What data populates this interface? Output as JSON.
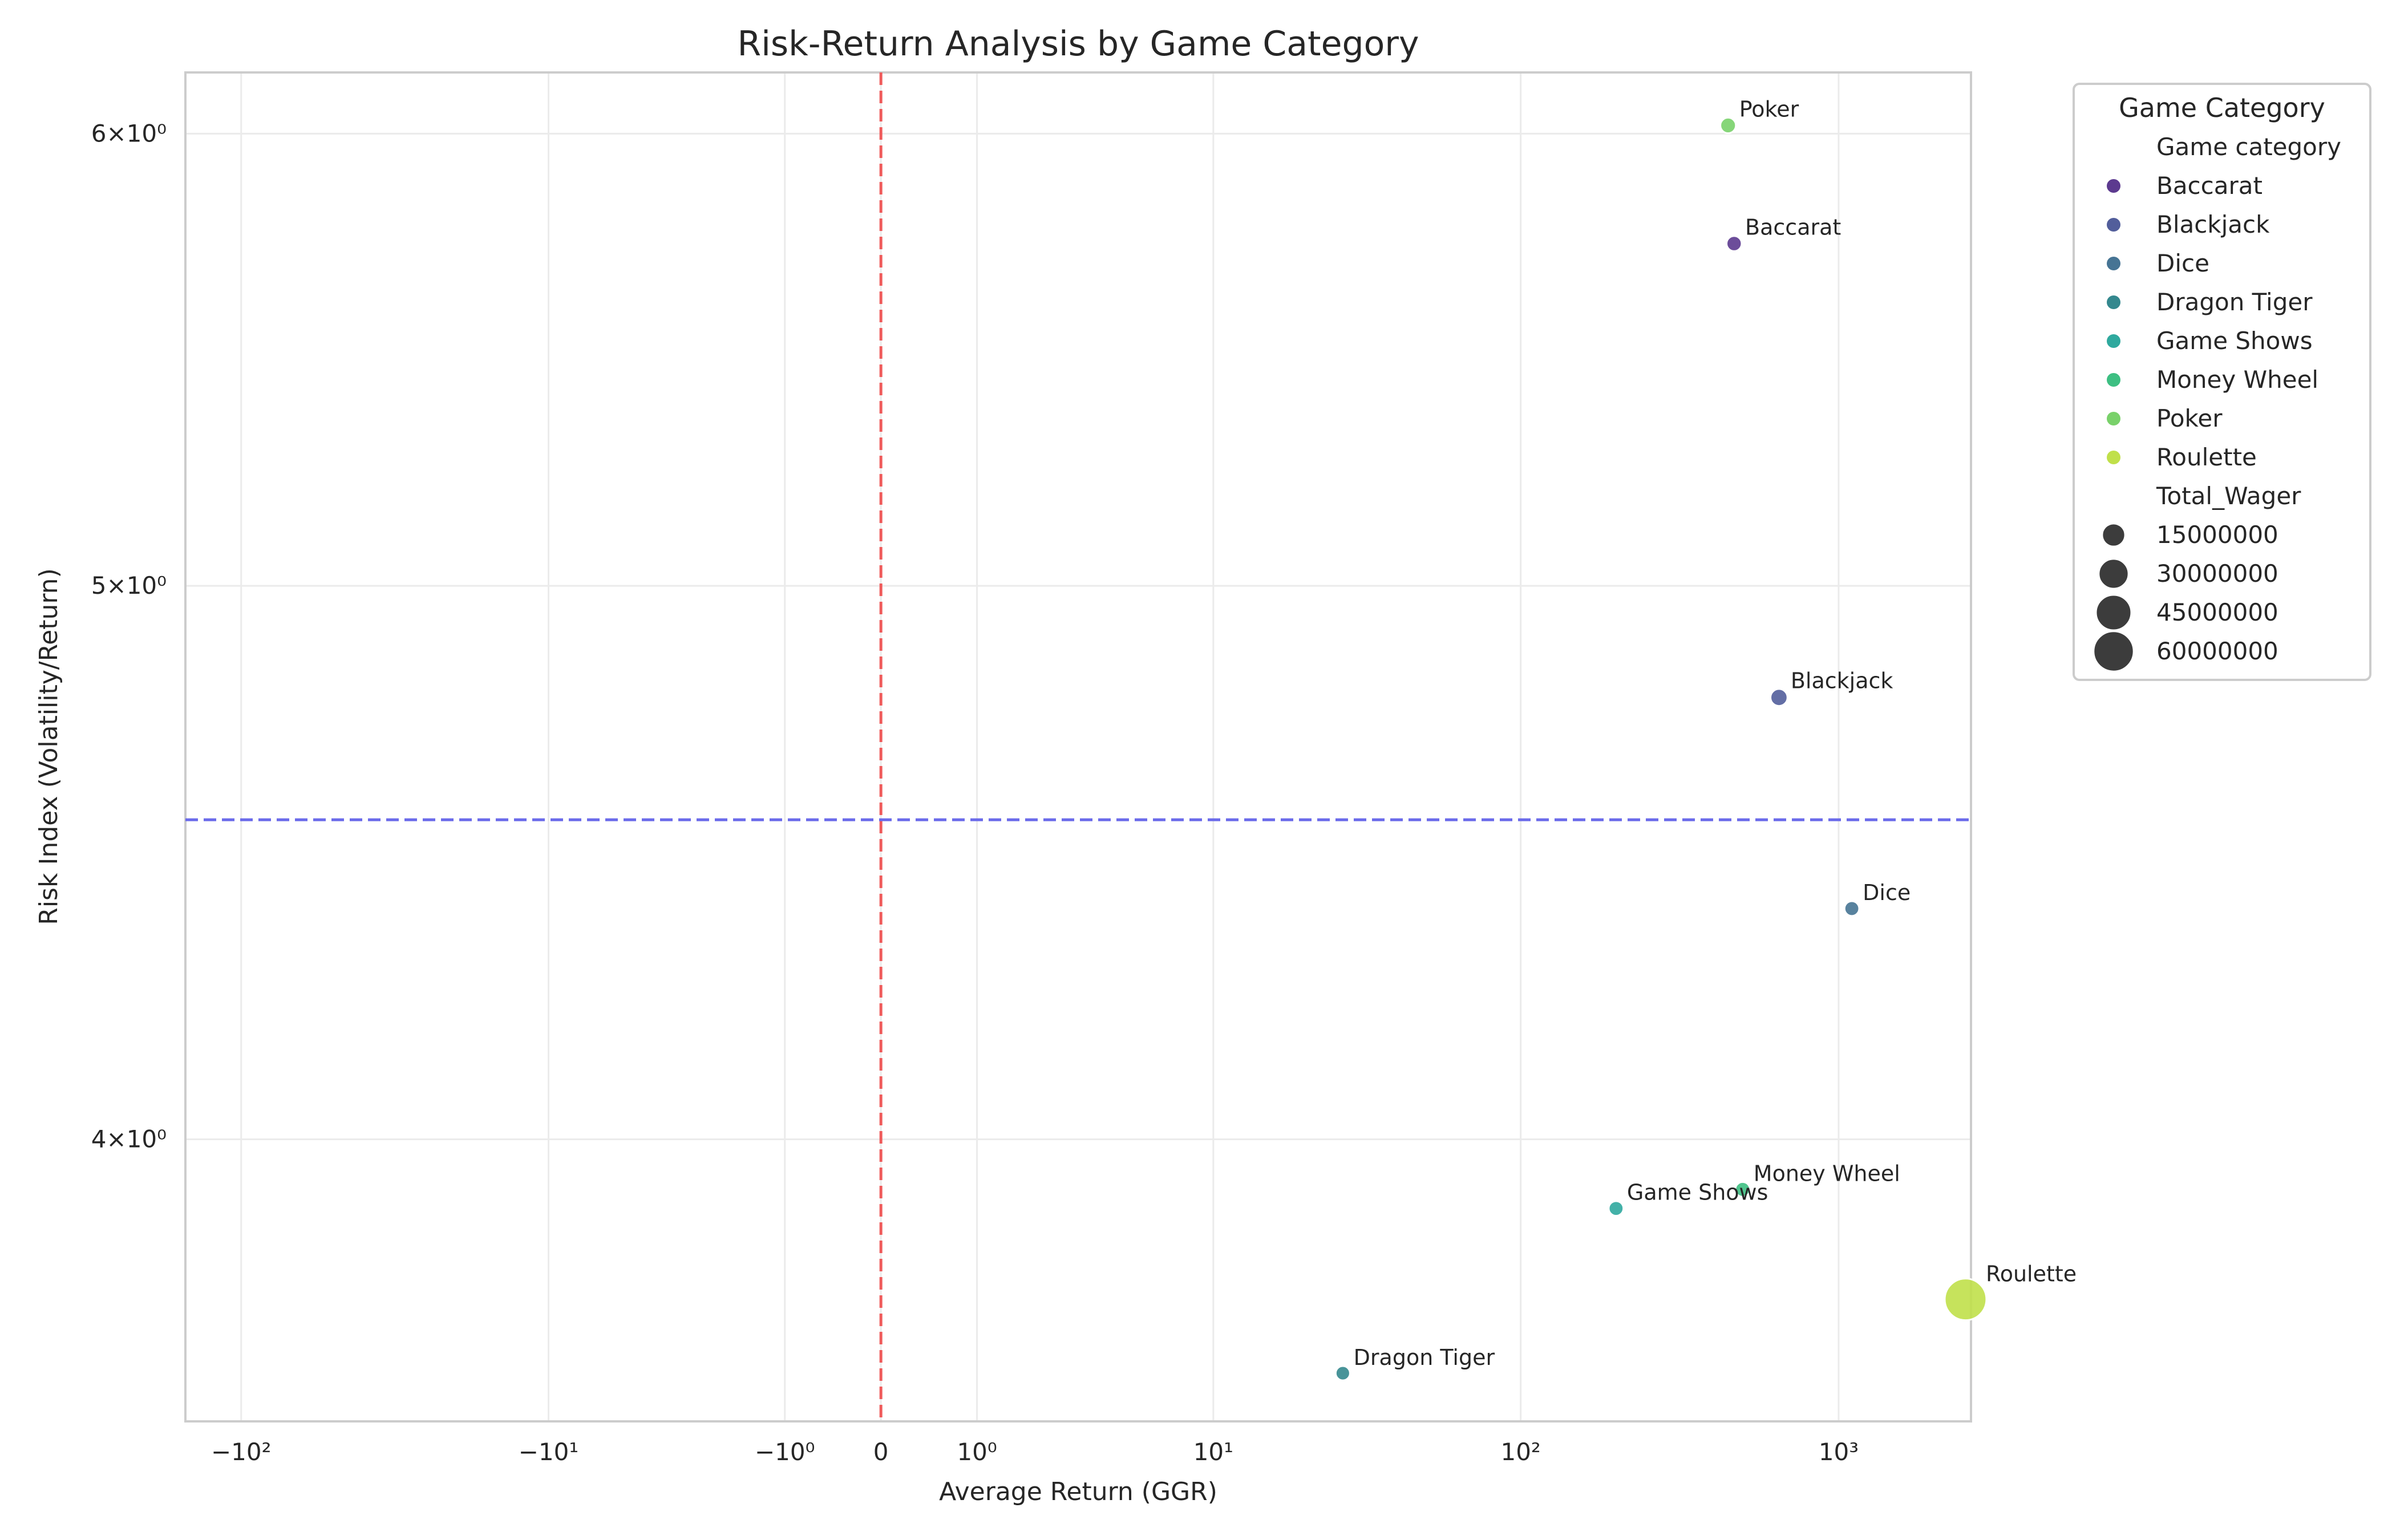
{
  "chart_data": {
    "type": "scatter",
    "title": "Risk-Return Analysis by Game Category",
    "xlabel": "Average Return (GGR)",
    "ylabel": "Risk Index (Volatility/Return)",
    "x_scale": "symlog",
    "y_scale": "log",
    "xlim": [
      -150,
      2600
    ],
    "ylim": [
      3.57,
      6.15
    ],
    "grid": true,
    "x_ticks": [
      {
        "value": -100,
        "label": "−10²"
      },
      {
        "value": -10,
        "label": "−10¹"
      },
      {
        "value": -1,
        "label": "−10⁰"
      },
      {
        "value": 0,
        "label": "0"
      },
      {
        "value": 1,
        "label": "10⁰"
      },
      {
        "value": 10,
        "label": "10¹"
      },
      {
        "value": 100,
        "label": "10²"
      },
      {
        "value": 1000,
        "label": "10³"
      }
    ],
    "y_ticks": [
      {
        "value": 4,
        "label": "4×10⁰"
      },
      {
        "value": 5,
        "label": "5×10⁰"
      },
      {
        "value": 6,
        "label": "6×10⁰"
      }
    ],
    "reference_lines": [
      {
        "axis": "x",
        "value": 0,
        "color": "#ef5b5b",
        "style": "dashed"
      },
      {
        "axis": "y",
        "value": 4.55,
        "color": "#6b6bea",
        "style": "dashed"
      }
    ],
    "points": [
      {
        "category": "Baccarat",
        "x": 470,
        "y": 5.74,
        "total_wager": 2500000,
        "color": "#5c3a8f"
      },
      {
        "category": "Blackjack",
        "x": 650,
        "y": 4.78,
        "total_wager": 5000000,
        "color": "#525e9b"
      },
      {
        "category": "Dice",
        "x": 1100,
        "y": 4.39,
        "total_wager": 2000000,
        "color": "#467494"
      },
      {
        "category": "Dragon Tiger",
        "x": 27,
        "y": 3.64,
        "total_wager": 1500000,
        "color": "#34888e"
      },
      {
        "category": "Game Shows",
        "x": 200,
        "y": 3.89,
        "total_wager": 2000000,
        "color": "#2fa99e"
      },
      {
        "category": "Money Wheel",
        "x": 500,
        "y": 3.92,
        "total_wager": 2000000,
        "color": "#3dbf82"
      },
      {
        "category": "Poker",
        "x": 450,
        "y": 6.02,
        "total_wager": 3000000,
        "color": "#79d16a"
      },
      {
        "category": "Roulette",
        "x": 2500,
        "y": 3.75,
        "total_wager": 65000000,
        "color": "#c0e04a"
      }
    ],
    "legend": {
      "title": "Game Category",
      "placement": "outside upper right",
      "hue_title": "Game category",
      "size_title": "Total_Wager",
      "size_entries": [
        {
          "label": "15000000",
          "value": 15000000
        },
        {
          "label": "30000000",
          "value": 30000000
        },
        {
          "label": "45000000",
          "value": 45000000
        },
        {
          "label": "60000000",
          "value": 60000000
        }
      ],
      "size_color": "#3c3c3c"
    }
  }
}
